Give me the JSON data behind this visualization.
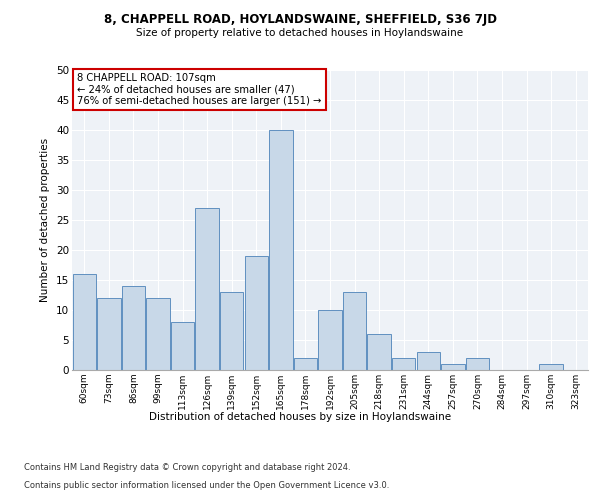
{
  "title": "8, CHAPPELL ROAD, HOYLANDSWAINE, SHEFFIELD, S36 7JD",
  "subtitle": "Size of property relative to detached houses in Hoylandswaine",
  "xlabel": "Distribution of detached houses by size in Hoylandswaine",
  "ylabel": "Number of detached properties",
  "bar_color": "#c8d8e8",
  "bar_edge_color": "#6090c0",
  "categories": [
    "60sqm",
    "73sqm",
    "86sqm",
    "99sqm",
    "113sqm",
    "126sqm",
    "139sqm",
    "152sqm",
    "165sqm",
    "178sqm",
    "192sqm",
    "205sqm",
    "218sqm",
    "231sqm",
    "244sqm",
    "257sqm",
    "270sqm",
    "284sqm",
    "297sqm",
    "310sqm",
    "323sqm"
  ],
  "values": [
    16,
    12,
    14,
    12,
    8,
    27,
    13,
    19,
    40,
    2,
    10,
    13,
    6,
    2,
    3,
    1,
    2,
    0,
    0,
    1,
    0
  ],
  "ylim": [
    0,
    50
  ],
  "yticks": [
    0,
    5,
    10,
    15,
    20,
    25,
    30,
    35,
    40,
    45,
    50
  ],
  "annotation_line1": "8 CHAPPELL ROAD: 107sqm",
  "annotation_line2": "← 24% of detached houses are smaller (47)",
  "annotation_line3": "76% of semi-detached houses are larger (151) →",
  "annotation_box_color": "#ffffff",
  "annotation_box_edge": "#cc0000",
  "footer_line1": "Contains HM Land Registry data © Crown copyright and database right 2024.",
  "footer_line2": "Contains public sector information licensed under the Open Government Licence v3.0.",
  "bg_color": "#eef2f7",
  "grid_color": "#ffffff"
}
